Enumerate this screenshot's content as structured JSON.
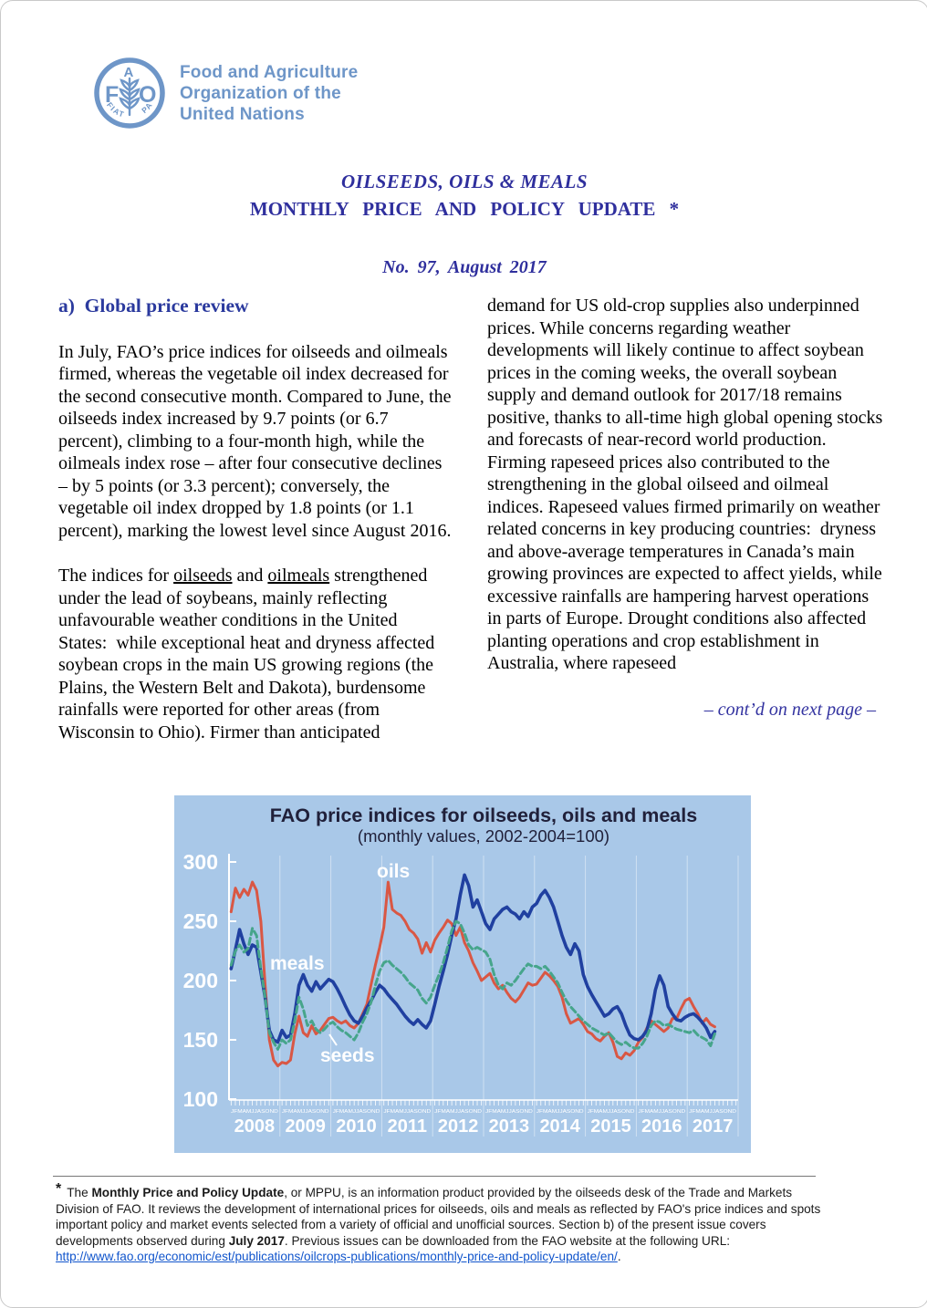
{
  "logo": {
    "letters": "FAO",
    "motto_left": "FIAT",
    "motto_right": "PANIS",
    "org_lines": [
      "Food and Agriculture",
      "Organization of the",
      "United Nations"
    ],
    "color": "#6e96c8"
  },
  "title_block": {
    "line1": "OILSEEDS, OILS & MEALS",
    "line2": "MONTHLY PRICE AND POLICY UPDATE *",
    "issue": "No. 97,  August 2017"
  },
  "sections": {
    "left": {
      "heading": "a)  Global price review",
      "para1": "In July, FAO’s price indices for oilseeds and oilmeals firmed, whereas the vegetable oil index decreased for the second consecutive month. Compared to June, the oilseeds index increased by 9.7 points (or 6.7 percent), climbing to a four-month high, while the oilmeals index rose – after four consecutive declines – by 5 points (or 3.3 percent); conversely, the vegetable oil index dropped by 1.8 points (or 1.1 percent), marking the lowest level since August 2016.",
      "para2": {
        "0": {
          "t": "The indices for "
        },
        "1": {
          "t": "oilseeds"
        },
        "2": {
          "t": " and "
        },
        "3": {
          "t": "oilmeals"
        },
        "4": {
          "t": " strengthened under the lead of soybeans, mainly reflecting unfavourable weather conditions in the United States:  while exceptional heat and dryness affected soybean crops in the main US growing regions (the Plains, the Western Belt and Dakota), burdensome rainfalls were reported for other areas (from Wisconsin to Ohio). Firmer than anticipated"
        }
      }
    },
    "right": {
      "para1": "demand for US old-crop supplies also underpinned prices. While concerns regarding weather developments will likely continue to affect soybean prices in the coming weeks, the overall soybean supply and demand outlook for 2017/18 remains positive, thanks to all-time high global opening stocks and forecasts of near-record world production. Firming rapeseed prices also contributed to the strengthening in the global oilseed and oilmeal indices. Rapeseed values firmed primarily on weather related concerns in key producing countries:  dryness and above-average temperatures in Canada’s main growing provinces are expected to affect yields, while excessive rainfalls are hampering harvest operations in parts of Europe. Drought conditions also affected planting operations and crop establishment in Australia, where rapeseed",
      "contd": "– cont’d on next page –"
    }
  },
  "chart_data": {
    "type": "line",
    "title": "FAO price indices for oilseeds, oils and meals",
    "subtitle": "(monthly values, 2002-2004=100)",
    "x_start": "2008-01",
    "x_end": "2017-07",
    "x_frequency": "monthly",
    "ylim": [
      100,
      310
    ],
    "y_ticks": [
      300,
      250,
      200,
      150,
      100
    ],
    "x_years": [
      "2008",
      "2009",
      "2010",
      "2011",
      "2012",
      "2013",
      "2014",
      "2015",
      "2016",
      "2017"
    ],
    "month_letters": "JFMAMJJASOND",
    "grid": "faint vertical year lines",
    "legend_position": "inline labels on lines",
    "colors": {
      "background": "#a9c8e8",
      "axis": "#ffffff",
      "title": "#20203a"
    },
    "series": [
      {
        "name": "oils",
        "color": "#d95744",
        "dashed": false,
        "values": [
          258,
          278,
          270,
          277,
          272,
          283,
          276,
          250,
          197,
          150,
          133,
          128,
          131,
          130,
          133,
          155,
          170,
          156,
          153,
          162,
          155,
          158,
          163,
          168,
          169,
          166,
          164,
          166,
          162,
          160,
          164,
          172,
          180,
          197,
          213,
          228,
          245,
          283,
          260,
          257,
          255,
          250,
          243,
          240,
          235,
          223,
          232,
          224,
          234,
          240,
          245,
          251,
          248,
          238,
          245,
          232,
          225,
          215,
          208,
          200,
          203,
          206,
          198,
          193,
          196,
          190,
          185,
          182,
          186,
          192,
          198,
          196,
          197,
          202,
          207,
          204,
          200,
          195,
          186,
          172,
          164,
          166,
          168,
          163,
          157,
          155,
          151,
          149,
          153,
          156,
          148,
          136,
          134,
          139,
          137,
          141,
          148,
          152,
          160,
          166,
          163,
          160,
          157,
          160,
          168,
          168,
          176,
          183,
          185,
          178,
          172,
          164,
          168,
          163,
          161
        ]
      },
      {
        "name": "meals",
        "color": "#2040a0",
        "dashed": false,
        "values": [
          210,
          226,
          243,
          231,
          222,
          230,
          228,
          207,
          186,
          158,
          150,
          148,
          158,
          152,
          154,
          172,
          196,
          205,
          196,
          191,
          199,
          193,
          197,
          201,
          199,
          193,
          186,
          178,
          171,
          166,
          164,
          170,
          177,
          183,
          190,
          196,
          193,
          188,
          184,
          180,
          175,
          170,
          166,
          163,
          167,
          163,
          160,
          166,
          180,
          195,
          208,
          222,
          238,
          252,
          272,
          289,
          280,
          262,
          268,
          258,
          248,
          243,
          252,
          256,
          260,
          262,
          258,
          256,
          252,
          258,
          254,
          262,
          265,
          272,
          276,
          270,
          262,
          250,
          238,
          228,
          222,
          231,
          225,
          205,
          195,
          188,
          182,
          176,
          170,
          172,
          176,
          178,
          172,
          162,
          154,
          151,
          150,
          153,
          158,
          172,
          192,
          204,
          196,
          178,
          172,
          167,
          166,
          169,
          171,
          172,
          169,
          165,
          160,
          152,
          157
        ]
      },
      {
        "name": "seeds",
        "color": "#46a58b",
        "dashed": true,
        "values": [
          213,
          225,
          230,
          224,
          227,
          244,
          238,
          210,
          186,
          156,
          148,
          142,
          150,
          147,
          150,
          166,
          186,
          176,
          162,
          166,
          159,
          156,
          159,
          163,
          165,
          161,
          158,
          156,
          153,
          150,
          156,
          165,
          172,
          182,
          196,
          208,
          215,
          217,
          213,
          210,
          207,
          203,
          198,
          195,
          192,
          185,
          181,
          186,
          196,
          205,
          215,
          228,
          242,
          250,
          248,
          240,
          230,
          226,
          228,
          226,
          224,
          218,
          205,
          196,
          193,
          198,
          196,
          200,
          205,
          210,
          214,
          212,
          212,
          210,
          212,
          208,
          203,
          198,
          190,
          183,
          178,
          174,
          170,
          166,
          163,
          160,
          158,
          156,
          154,
          156,
          152,
          148,
          146,
          148,
          145,
          143,
          143,
          147,
          153,
          162,
          166,
          165,
          162,
          163,
          161,
          159,
          158,
          157,
          156,
          158,
          154,
          152,
          150,
          145,
          155
        ]
      }
    ]
  },
  "footnote": {
    "marker": "*",
    "seg0": "The ",
    "seg1": "Monthly Price and Policy Update",
    "seg2": ", or MPPU, is an information product provided by the oilseeds desk of the Trade and Markets Division of FAO. It reviews the development of international prices for oilseeds, oils and meals as reflected by FAO's price indices and spots important policy and market events selected from a variety of official and unofficial sources. Section b) of the present issue covers developments observed during ",
    "seg3": "July 2017",
    "seg4": ". Previous issues can be downloaded from the FAO website at the following URL: ",
    "link": "http://www.fao.org/economic/est/publications/oilcrops-publications/monthly-price-and-policy-update/en/",
    "seg5": "."
  }
}
